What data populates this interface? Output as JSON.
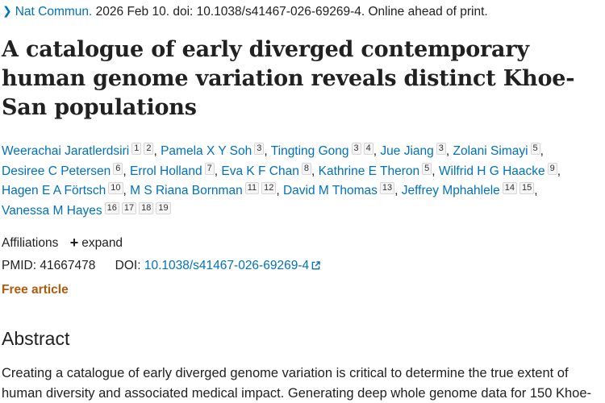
{
  "citation": {
    "journal": "Nat Commun.",
    "rest": " 2026 Feb 10. doi: 10.1038/s41467-026-69269-4. Online ahead of print."
  },
  "title": "A catalogue of early diverged contemporary human genome variation reveals distinct Khoe-San populations",
  "authors": [
    {
      "name": "Weerachai Jaratlerdsiri",
      "affs": [
        "1",
        "2"
      ]
    },
    {
      "name": "Pamela X Y Soh",
      "affs": [
        "3"
      ]
    },
    {
      "name": "Tingting Gong",
      "affs": [
        "3",
        "4"
      ]
    },
    {
      "name": "Jue Jiang",
      "affs": [
        "3"
      ]
    },
    {
      "name": "Zolani Simayi",
      "affs": [
        "5"
      ]
    },
    {
      "name": "Desiree C Petersen",
      "affs": [
        "6"
      ]
    },
    {
      "name": "Errol Holland",
      "affs": [
        "7"
      ]
    },
    {
      "name": "Eva K F Chan",
      "affs": [
        "8"
      ]
    },
    {
      "name": "Kathrine E Theron",
      "affs": [
        "5"
      ]
    },
    {
      "name": "Wilfrid H G Haacke",
      "affs": [
        "9"
      ]
    },
    {
      "name": "Hagen E A Förtsch",
      "affs": [
        "10"
      ]
    },
    {
      "name": "M S Riana Bornman",
      "affs": [
        "11",
        "12"
      ]
    },
    {
      "name": "David M Thomas",
      "affs": [
        "13"
      ]
    },
    {
      "name": "Jeffrey Mphahlele",
      "affs": [
        "14",
        "15"
      ]
    },
    {
      "name": "Vanessa M Hayes",
      "affs": [
        "16",
        "17",
        "18",
        "19"
      ]
    }
  ],
  "affiliations": {
    "label": "Affiliations",
    "expand_label": "expand"
  },
  "ids": {
    "pmid_label": "PMID:",
    "pmid": "41667478",
    "doi_label": "DOI:",
    "doi": "10.1038/s41467-026-69269-4"
  },
  "free_article": "Free article",
  "abstract": {
    "heading": "Abstract",
    "text": "Creating a catalogue of early diverged genome variation is critical to determine the true extent of human diversity and associated medical impact. Generating deep whole genome data for 150 Khoe-"
  },
  "colors": {
    "link": "#0071bc",
    "free": "#b55a0b",
    "text": "#212121"
  }
}
